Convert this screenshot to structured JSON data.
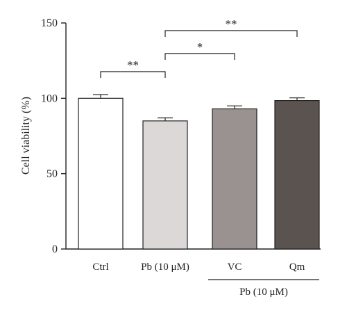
{
  "chart_data": {
    "type": "bar",
    "categories": [
      "Ctrl",
      "Pb (10 μM)",
      "VC",
      "Qm"
    ],
    "values": [
      100,
      85,
      93,
      98.5
    ],
    "errors": [
      2.5,
      2.0,
      2.0,
      1.8
    ],
    "colors": [
      "#ffffff",
      "#dcd8d8",
      "#9a9290",
      "#5a5350"
    ],
    "ylabel": "Cell viability (%)",
    "ylim": [
      0,
      150
    ],
    "yticks": [
      "0",
      "50",
      "100",
      "150"
    ],
    "grid": false,
    "group_label": "Pb (10 μM)",
    "significance": [
      {
        "from": 0,
        "to": 1,
        "label": "**"
      },
      {
        "from": 1,
        "to": 2,
        "label": "*"
      },
      {
        "from": 1,
        "to": 3,
        "label": "**"
      }
    ]
  }
}
